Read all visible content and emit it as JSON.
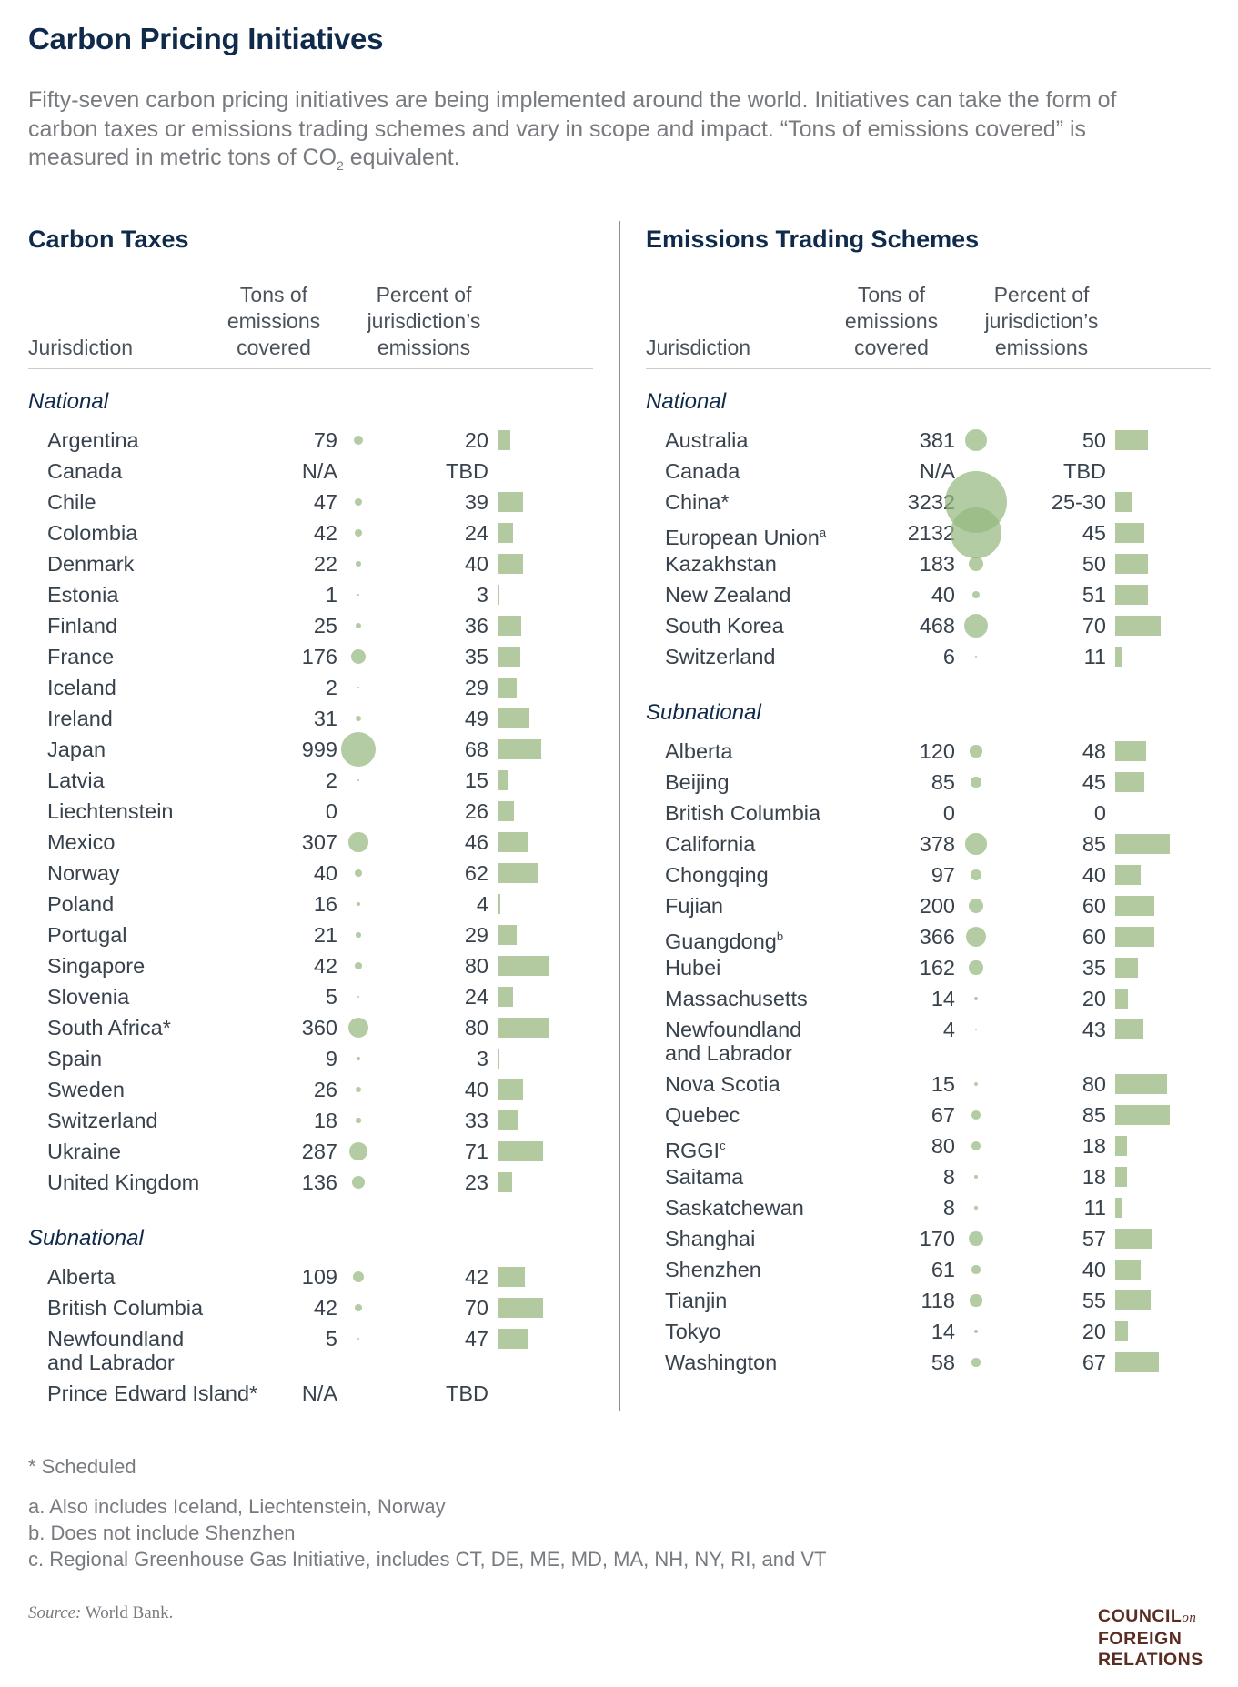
{
  "title": "Carbon Pricing Initiatives",
  "intro": {
    "text_before_sub": "Fifty-seven carbon pricing initiatives are being implemented around the world. Initiatives can take the form of carbon taxes or emissions trading schemes and vary in scope and impact. “Tons of emissions covered” is measured in metric tons of CO",
    "sub": "2",
    "text_after_sub": " equivalent."
  },
  "columns": {
    "jurisdiction": "Jurisdiction",
    "tons": [
      "Tons of",
      "emissions",
      "covered"
    ],
    "percent": [
      "Percent of",
      "jurisdiction’s",
      "emissions"
    ]
  },
  "colors": {
    "bubble": "#96b980",
    "bar": "#b3c9a0",
    "title": "#0f2a4a",
    "logo": "#5a2d23"
  },
  "chart_data": [
    {
      "type": "table",
      "title": "Carbon Taxes",
      "sections": [
        {
          "label": "National",
          "rows": [
            {
              "name": "Argentina",
              "tons": "79",
              "percent": "20"
            },
            {
              "name": "Canada",
              "tons": "N/A",
              "percent": "TBD"
            },
            {
              "name": "Chile",
              "tons": "47",
              "percent": "39"
            },
            {
              "name": "Colombia",
              "tons": "42",
              "percent": "24"
            },
            {
              "name": "Denmark",
              "tons": "22",
              "percent": "40"
            },
            {
              "name": "Estonia",
              "tons": "1",
              "percent": "3"
            },
            {
              "name": "Finland",
              "tons": "25",
              "percent": "36"
            },
            {
              "name": "France",
              "tons": "176",
              "percent": "35"
            },
            {
              "name": "Iceland",
              "tons": "2",
              "percent": "29"
            },
            {
              "name": "Ireland",
              "tons": "31",
              "percent": "49"
            },
            {
              "name": "Japan",
              "tons": "999",
              "percent": "68"
            },
            {
              "name": "Latvia",
              "tons": "2",
              "percent": "15"
            },
            {
              "name": "Liechtenstein",
              "tons": "0",
              "percent": "26"
            },
            {
              "name": "Mexico",
              "tons": "307",
              "percent": "46"
            },
            {
              "name": "Norway",
              "tons": "40",
              "percent": "62"
            },
            {
              "name": "Poland",
              "tons": "16",
              "percent": "4"
            },
            {
              "name": "Portugal",
              "tons": "21",
              "percent": "29"
            },
            {
              "name": "Singapore",
              "tons": "42",
              "percent": "80"
            },
            {
              "name": "Slovenia",
              "tons": "5",
              "percent": "24"
            },
            {
              "name": "South Africa*",
              "tons": "360",
              "percent": "80"
            },
            {
              "name": "Spain",
              "tons": "9",
              "percent": "3"
            },
            {
              "name": "Sweden",
              "tons": "26",
              "percent": "40"
            },
            {
              "name": "Switzerland",
              "tons": "18",
              "percent": "33"
            },
            {
              "name": "Ukraine",
              "tons": "287",
              "percent": "71"
            },
            {
              "name": "United Kingdom",
              "tons": "136",
              "percent": "23"
            }
          ]
        },
        {
          "label": "Subnational",
          "rows": [
            {
              "name": "Alberta",
              "tons": "109",
              "percent": "42"
            },
            {
              "name": "British Columbia",
              "tons": "42",
              "percent": "70"
            },
            {
              "name": "Newfoundland",
              "name2": "and Labrador",
              "tons": "5",
              "percent": "47"
            },
            {
              "name": "Prince Edward Island*",
              "tons": "N/A",
              "percent": "TBD"
            }
          ]
        }
      ]
    },
    {
      "type": "table",
      "title": "Emissions Trading Schemes",
      "sections": [
        {
          "label": "National",
          "rows": [
            {
              "name": "Australia",
              "tons": "381",
              "percent": "50"
            },
            {
              "name": "Canada",
              "tons": "N/A",
              "percent": "TBD"
            },
            {
              "name": "China*",
              "tons": "3232",
              "percent": "25-30"
            },
            {
              "name": "European Union",
              "sup": "a",
              "tons": "2132",
              "percent": "45"
            },
            {
              "name": "Kazakhstan",
              "tons": "183",
              "percent": "50"
            },
            {
              "name": "New Zealand",
              "tons": "40",
              "percent": "51"
            },
            {
              "name": "South Korea",
              "tons": "468",
              "percent": "70"
            },
            {
              "name": "Switzerland",
              "tons": "6",
              "percent": "11"
            }
          ]
        },
        {
          "label": "Subnational",
          "rows": [
            {
              "name": "Alberta",
              "tons": "120",
              "percent": "48"
            },
            {
              "name": "Beijing",
              "tons": "85",
              "percent": "45"
            },
            {
              "name": "British Columbia",
              "tons": "0",
              "percent": "0"
            },
            {
              "name": "California",
              "tons": "378",
              "percent": "85"
            },
            {
              "name": "Chongqing",
              "tons": "97",
              "percent": "40"
            },
            {
              "name": "Fujian",
              "tons": "200",
              "percent": "60"
            },
            {
              "name": "Guangdong",
              "sup": "b",
              "tons": "366",
              "percent": "60"
            },
            {
              "name": "Hubei",
              "tons": "162",
              "percent": "35"
            },
            {
              "name": "Massachusetts",
              "tons": "14",
              "percent": "20"
            },
            {
              "name": "Newfoundland",
              "name2": "and Labrador",
              "tons": "4",
              "percent": "43"
            },
            {
              "name": "Nova Scotia",
              "tons": "15",
              "percent": "80"
            },
            {
              "name": "Quebec",
              "tons": "67",
              "percent": "85"
            },
            {
              "name": "RGGI",
              "sup": "c",
              "tons": "80",
              "percent": "18"
            },
            {
              "name": "Saitama",
              "tons": "8",
              "percent": "18"
            },
            {
              "name": "Saskatchewan",
              "tons": "8",
              "percent": "11"
            },
            {
              "name": "Shanghai",
              "tons": "170",
              "percent": "57"
            },
            {
              "name": "Shenzhen",
              "tons": "61",
              "percent": "40"
            },
            {
              "name": "Tianjin",
              "tons": "118",
              "percent": "55"
            },
            {
              "name": "Tokyo",
              "tons": "14",
              "percent": "20"
            },
            {
              "name": "Washington",
              "tons": "58",
              "percent": "67"
            }
          ]
        }
      ]
    }
  ],
  "footnotes": {
    "scheduled": "* Scheduled",
    "a": "a. Also includes Iceland, Liechtenstein, Norway",
    "b": "b. Does not include Shenzhen",
    "c": "c. Regional Greenhouse Gas Initiative, includes CT, DE, ME, MD, MA, NH, NY, RI, and VT"
  },
  "source": {
    "label": "Source:",
    "text": " World Bank."
  },
  "logo": {
    "line1": "COUNCIL",
    "on": "on",
    "line2": "FOREIGN",
    "line3": "RELATIONS"
  }
}
